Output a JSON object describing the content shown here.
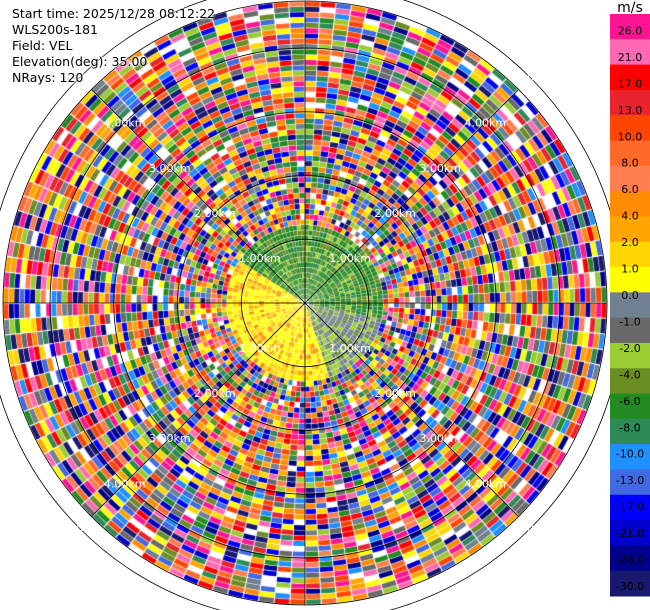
{
  "header": {
    "start_time": "Start time: 2025/12/28 08:12:22",
    "instrument": "WLS200s-181",
    "field": "Field: VEL",
    "elevation": "Elevation(deg): 35.00",
    "nrays": "NRays: 120"
  },
  "colorbar": {
    "unit": "m/s",
    "ticks": [
      "26.0",
      "21.0",
      "17.0",
      "13.0",
      "10.0",
      "8.0",
      "6.0",
      "4.0",
      "2.0",
      "1.0",
      "0.0",
      "-1.0",
      "-2.0",
      "-4.0",
      "-6.0",
      "-8.0",
      "-10.0",
      "-13.0",
      "-17.0",
      "-21.0",
      "-26.0",
      "-30.0"
    ],
    "colors": [
      "#ff1493",
      "#ff69b4",
      "#ff0000",
      "#e8242c",
      "#ff4500",
      "#ff6a2a",
      "#ff7f50",
      "#ff8c00",
      "#ffa500",
      "#ffd700",
      "#ffff00",
      "#708090",
      "#696969",
      "#9acd32",
      "#6b8e23",
      "#228b22",
      "#2e8b57",
      "#1e90ff",
      "#4169e1",
      "#0000ff",
      "#0000cd",
      "#00008b",
      "#191970"
    ]
  },
  "chart_data": {
    "type": "ppi",
    "field": "VEL",
    "units": "m/s",
    "elevation_deg": 35.0,
    "n_rays": 120,
    "range_rings_km": [
      1.0,
      2.0,
      3.0,
      4.0,
      5.0
    ],
    "ring_labels": [
      "1.00km",
      "2.00km",
      "3.00km",
      "4.00km",
      "5.00km"
    ],
    "color_levels": [
      -30,
      -26,
      -21,
      -17,
      -13,
      -10,
      -8,
      -6,
      -4,
      -2,
      -1,
      0,
      1,
      2,
      4,
      6,
      8,
      10,
      13,
      17,
      21,
      26
    ]
  }
}
